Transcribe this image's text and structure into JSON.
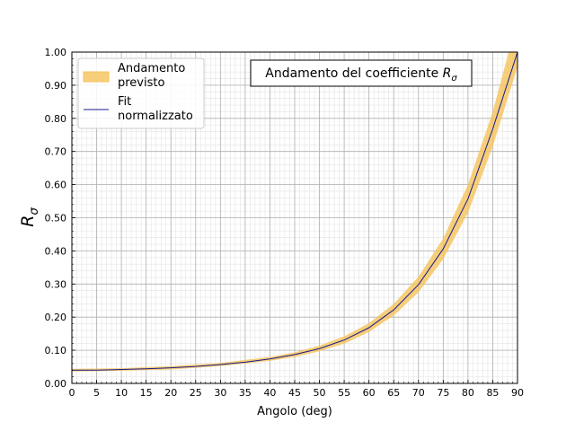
{
  "chart_data": {
    "type": "area",
    "title": "Andamento del coefficiente R_σ",
    "title_main": "Andamento del coefficiente ",
    "title_symbol": "R",
    "title_subscript": "σ",
    "xlabel": "Angolo (deg)",
    "ylabel_symbol": "R",
    "ylabel_subscript": "σ",
    "xlim": [
      0,
      90
    ],
    "ylim": [
      0,
      1.0
    ],
    "xticks": [
      "0",
      "5",
      "10",
      "15",
      "20",
      "25",
      "30",
      "35",
      "40",
      "45",
      "50",
      "55",
      "60",
      "65",
      "70",
      "75",
      "80",
      "85",
      "90"
    ],
    "yticks": [
      "0.00",
      "0.10",
      "0.20",
      "0.30",
      "0.40",
      "0.50",
      "0.60",
      "0.70",
      "0.80",
      "0.90",
      "1.00"
    ],
    "grid": true,
    "minor_grid": true,
    "legend_position": "top-left",
    "series": [
      {
        "name_lines": [
          "Andamento",
          "previsto"
        ],
        "kind": "band",
        "color": "#f5c35a",
        "x": [
          0,
          10,
          20,
          30,
          40,
          45,
          50,
          55,
          60,
          65,
          70,
          75,
          80,
          85,
          90,
          91
        ],
        "lower": [
          0.036,
          0.038,
          0.042,
          0.052,
          0.068,
          0.08,
          0.097,
          0.12,
          0.155,
          0.205,
          0.275,
          0.375,
          0.515,
          0.715,
          0.955,
          1.01
        ],
        "upper": [
          0.044,
          0.046,
          0.052,
          0.062,
          0.08,
          0.094,
          0.114,
          0.142,
          0.182,
          0.24,
          0.322,
          0.438,
          0.6,
          0.82,
          1.1,
          1.15
        ]
      },
      {
        "name_lines": [
          "Fit",
          "normalizzato"
        ],
        "kind": "line",
        "color": "#1a1a8c",
        "x": [
          0,
          5,
          10,
          15,
          20,
          25,
          30,
          35,
          40,
          45,
          50,
          55,
          60,
          65,
          70,
          75,
          80,
          85,
          90
        ],
        "y": [
          0.04,
          0.04,
          0.042,
          0.044,
          0.047,
          0.051,
          0.057,
          0.064,
          0.074,
          0.087,
          0.105,
          0.131,
          0.168,
          0.222,
          0.298,
          0.406,
          0.557,
          0.768,
          1.0
        ]
      }
    ]
  }
}
